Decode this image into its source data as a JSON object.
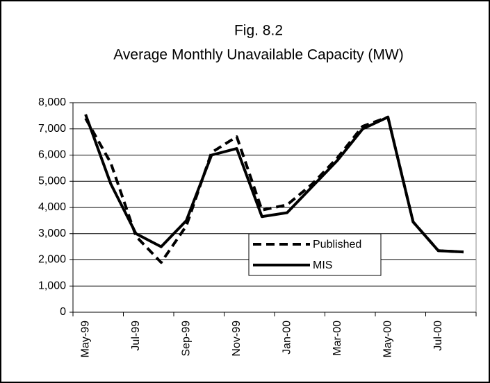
{
  "chart_data": {
    "type": "line",
    "title": "Fig. 8.2",
    "subtitle": "Average Monthly Unavailable Capacity (MW)",
    "categories": [
      "May-99",
      null,
      "Jul-99",
      null,
      "Sep-99",
      null,
      "Nov-99",
      null,
      "Jan-00",
      null,
      "Mar-00",
      null,
      "May-00",
      null,
      "Jul-00",
      null
    ],
    "series": [
      {
        "name": "Published",
        "color": "#000000",
        "dash": true,
        "values": [
          7400,
          5700,
          2900,
          1900,
          3300,
          6100,
          6700,
          3900,
          4100,
          4900,
          5900,
          7100,
          7450,
          3450,
          2350,
          2300
        ]
      },
      {
        "name": "MIS",
        "color": "#000000",
        "dash": false,
        "values": [
          7550,
          4900,
          3000,
          2500,
          3500,
          6000,
          6250,
          3650,
          3800,
          4800,
          5800,
          7000,
          7450,
          3450,
          2350,
          2300
        ]
      }
    ],
    "ylim": [
      0,
      8000
    ],
    "yticks": [
      0,
      {
        "value": 1000,
        "label": "1,000"
      },
      {
        "value": 2000,
        "label": "2,000"
      },
      {
        "value": 3000,
        "label": "3,000"
      },
      {
        "value": 4000,
        "label": "4,000"
      },
      {
        "value": 5000,
        "label": "5,000"
      },
      {
        "value": 6000,
        "label": "6,000"
      },
      {
        "value": 7000,
        "label": "7,000"
      },
      {
        "value": 8000,
        "label": "8,000"
      }
    ],
    "grid": true
  }
}
